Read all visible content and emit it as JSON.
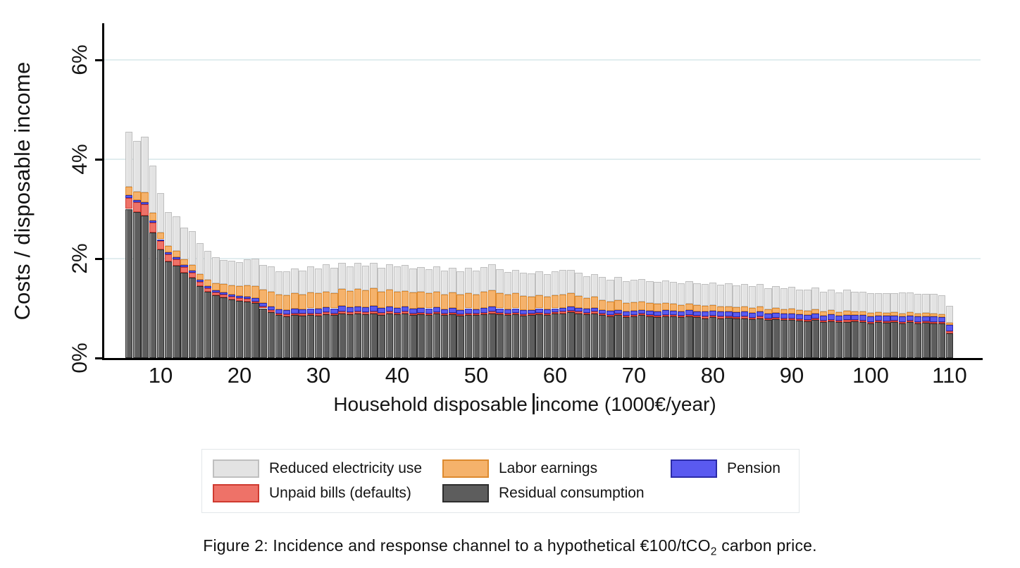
{
  "figure": {
    "y_axis_title": "Costs / disposable income",
    "x_axis_title_before_cursor": "Household disposable",
    "x_axis_title_after_cursor": "income (1000€/year)",
    "caption": {
      "prefix": "Figure 2: Incidence and response channel to a hypothetical €100/tCO",
      "subscript": "2",
      "suffix": " carbon price."
    }
  },
  "legend": {
    "items": [
      {
        "label": "Reduced electricity use",
        "series": "electricity"
      },
      {
        "label": "Labor earnings",
        "series": "labor"
      },
      {
        "label": "Pension",
        "series": "pension"
      },
      {
        "label": "Unpaid bills (defaults)",
        "series": "unpaid"
      },
      {
        "label": "Residual consumption",
        "series": "residual"
      }
    ]
  },
  "chart_data": {
    "type": "bar",
    "stacked": true,
    "title": "",
    "xlabel": "Household disposable income (1000€/year)",
    "ylabel": "Costs / disposable income",
    "y_unit": "% of disposable income",
    "xlim": [
      4.5,
      113.5
    ],
    "ylim": [
      0,
      6.73
    ],
    "grid": "horizontal",
    "grid_color": "#e1edef",
    "axis_color": "#000000",
    "xticks": [
      10,
      20,
      30,
      40,
      50,
      60,
      70,
      80,
      90,
      100,
      110
    ],
    "yticks": [
      {
        "value": 0,
        "label": "0%"
      },
      {
        "value": 2,
        "label": "2%"
      },
      {
        "value": 4,
        "label": "4%"
      },
      {
        "value": 6,
        "label": "6%"
      }
    ],
    "x": [
      6,
      7,
      8,
      9,
      10,
      11,
      12,
      13,
      14,
      15,
      16,
      17,
      18,
      19,
      20,
      21,
      22,
      23,
      24,
      25,
      26,
      27,
      28,
      29,
      30,
      31,
      32,
      33,
      34,
      35,
      36,
      37,
      38,
      39,
      40,
      41,
      42,
      43,
      44,
      45,
      46,
      47,
      48,
      49,
      50,
      51,
      52,
      53,
      54,
      55,
      56,
      57,
      58,
      59,
      60,
      61,
      62,
      63,
      64,
      65,
      66,
      67,
      68,
      69,
      70,
      71,
      72,
      73,
      74,
      75,
      76,
      77,
      78,
      79,
      80,
      81,
      82,
      83,
      84,
      85,
      86,
      87,
      88,
      89,
      90,
      91,
      92,
      93,
      94,
      95,
      96,
      97,
      98,
      99,
      100,
      101,
      102,
      103,
      104,
      105,
      106,
      107,
      108,
      109,
      110
    ],
    "stack_order_bottom_to_top": [
      "residual",
      "unpaid",
      "pension",
      "labor",
      "electricity"
    ],
    "series": [
      {
        "key": "residual",
        "name": "Residual consumption",
        "fill": "#5d5d5d",
        "border": "#2d2d2d",
        "values": [
          3.0,
          2.93,
          2.87,
          2.52,
          2.18,
          1.95,
          1.86,
          1.72,
          1.62,
          1.45,
          1.33,
          1.26,
          1.22,
          1.18,
          1.15,
          1.14,
          1.1,
          1.0,
          0.92,
          0.86,
          0.84,
          0.86,
          0.85,
          0.86,
          0.85,
          0.88,
          0.86,
          0.9,
          0.88,
          0.89,
          0.88,
          0.9,
          0.87,
          0.89,
          0.88,
          0.9,
          0.86,
          0.88,
          0.87,
          0.89,
          0.86,
          0.88,
          0.85,
          0.87,
          0.86,
          0.88,
          0.9,
          0.88,
          0.86,
          0.88,
          0.85,
          0.86,
          0.88,
          0.87,
          0.89,
          0.9,
          0.92,
          0.9,
          0.88,
          0.9,
          0.86,
          0.84,
          0.86,
          0.82,
          0.84,
          0.86,
          0.84,
          0.82,
          0.84,
          0.83,
          0.82,
          0.84,
          0.82,
          0.8,
          0.82,
          0.8,
          0.81,
          0.79,
          0.8,
          0.78,
          0.8,
          0.76,
          0.78,
          0.76,
          0.77,
          0.75,
          0.74,
          0.76,
          0.72,
          0.74,
          0.72,
          0.73,
          0.74,
          0.72,
          0.7,
          0.72,
          0.71,
          0.72,
          0.7,
          0.72,
          0.7,
          0.71,
          0.7,
          0.69,
          0.5
        ]
      },
      {
        "key": "unpaid",
        "name": "Unpaid bills (defaults)",
        "fill": "#ee7268",
        "border": "#cf3a30",
        "values": [
          0.22,
          0.2,
          0.22,
          0.2,
          0.17,
          0.14,
          0.13,
          0.11,
          0.1,
          0.08,
          0.07,
          0.06,
          0.06,
          0.05,
          0.05,
          0.05,
          0.04,
          0.04,
          0.04,
          0.04,
          0.04,
          0.04,
          0.04,
          0.04,
          0.04,
          0.04,
          0.04,
          0.04,
          0.04,
          0.04,
          0.04,
          0.04,
          0.04,
          0.04,
          0.03,
          0.03,
          0.03,
          0.03,
          0.03,
          0.03,
          0.03,
          0.03,
          0.03,
          0.03,
          0.03,
          0.03,
          0.03,
          0.03,
          0.03,
          0.03,
          0.03,
          0.03,
          0.03,
          0.03,
          0.03,
          0.03,
          0.03,
          0.03,
          0.03,
          0.03,
          0.03,
          0.03,
          0.03,
          0.03,
          0.03,
          0.03,
          0.03,
          0.03,
          0.03,
          0.03,
          0.03,
          0.03,
          0.03,
          0.03,
          0.03,
          0.03,
          0.03,
          0.03,
          0.03,
          0.03,
          0.03,
          0.03,
          0.03,
          0.03,
          0.03,
          0.03,
          0.03,
          0.03,
          0.03,
          0.03,
          0.03,
          0.03,
          0.03,
          0.03,
          0.03,
          0.03,
          0.03,
          0.03,
          0.03,
          0.03,
          0.03,
          0.03,
          0.03,
          0.03,
          0.04
        ]
      },
      {
        "key": "pension",
        "name": "Pension",
        "fill": "#5a5af0",
        "border": "#2b2ba8",
        "values": [
          0.05,
          0.05,
          0.05,
          0.05,
          0.04,
          0.04,
          0.04,
          0.04,
          0.04,
          0.04,
          0.04,
          0.04,
          0.04,
          0.05,
          0.05,
          0.05,
          0.06,
          0.06,
          0.07,
          0.08,
          0.08,
          0.09,
          0.09,
          0.1,
          0.1,
          0.1,
          0.1,
          0.11,
          0.1,
          0.11,
          0.1,
          0.11,
          0.1,
          0.1,
          0.1,
          0.1,
          0.1,
          0.1,
          0.1,
          0.1,
          0.09,
          0.1,
          0.09,
          0.1,
          0.09,
          0.1,
          0.1,
          0.09,
          0.09,
          0.09,
          0.09,
          0.08,
          0.09,
          0.08,
          0.08,
          0.08,
          0.09,
          0.08,
          0.08,
          0.08,
          0.08,
          0.08,
          0.08,
          0.08,
          0.08,
          0.08,
          0.08,
          0.09,
          0.09,
          0.09,
          0.09,
          0.09,
          0.09,
          0.1,
          0.1,
          0.1,
          0.1,
          0.1,
          0.1,
          0.1,
          0.1,
          0.1,
          0.1,
          0.1,
          0.1,
          0.1,
          0.1,
          0.11,
          0.1,
          0.11,
          0.1,
          0.11,
          0.1,
          0.11,
          0.11,
          0.1,
          0.11,
          0.1,
          0.11,
          0.1,
          0.1,
          0.1,
          0.1,
          0.1,
          0.12
        ]
      },
      {
        "key": "labor",
        "name": "Labor earnings",
        "fill": "#f5b26b",
        "border": "#dd8a2f",
        "values": [
          0.18,
          0.17,
          0.19,
          0.15,
          0.13,
          0.12,
          0.12,
          0.11,
          0.11,
          0.12,
          0.13,
          0.15,
          0.17,
          0.18,
          0.2,
          0.22,
          0.24,
          0.27,
          0.3,
          0.29,
          0.3,
          0.31,
          0.3,
          0.32,
          0.31,
          0.32,
          0.31,
          0.34,
          0.33,
          0.35,
          0.34,
          0.35,
          0.33,
          0.34,
          0.33,
          0.32,
          0.33,
          0.32,
          0.31,
          0.32,
          0.3,
          0.31,
          0.3,
          0.31,
          0.3,
          0.32,
          0.33,
          0.31,
          0.29,
          0.3,
          0.28,
          0.27,
          0.26,
          0.25,
          0.26,
          0.27,
          0.26,
          0.24,
          0.22,
          0.22,
          0.2,
          0.19,
          0.2,
          0.18,
          0.17,
          0.16,
          0.15,
          0.15,
          0.14,
          0.14,
          0.13,
          0.13,
          0.12,
          0.12,
          0.11,
          0.11,
          0.1,
          0.1,
          0.1,
          0.1,
          0.1,
          0.09,
          0.1,
          0.09,
          0.09,
          0.08,
          0.08,
          0.08,
          0.08,
          0.08,
          0.07,
          0.08,
          0.07,
          0.07,
          0.07,
          0.07,
          0.06,
          0.07,
          0.06,
          0.07,
          0.06,
          0.07,
          0.06,
          0.06,
          0.05
        ]
      },
      {
        "key": "electricity",
        "name": "Reduced electricity use",
        "fill": "#e3e3e3",
        "border": "#bfbfbf",
        "values": [
          1.1,
          1.02,
          1.12,
          0.95,
          0.8,
          0.68,
          0.7,
          0.64,
          0.68,
          0.62,
          0.58,
          0.52,
          0.48,
          0.5,
          0.48,
          0.52,
          0.56,
          0.5,
          0.52,
          0.48,
          0.48,
          0.5,
          0.48,
          0.52,
          0.5,
          0.54,
          0.5,
          0.52,
          0.5,
          0.52,
          0.5,
          0.52,
          0.48,
          0.52,
          0.5,
          0.52,
          0.48,
          0.5,
          0.48,
          0.5,
          0.48,
          0.5,
          0.48,
          0.5,
          0.48,
          0.5,
          0.52,
          0.48,
          0.46,
          0.48,
          0.46,
          0.46,
          0.48,
          0.46,
          0.48,
          0.5,
          0.48,
          0.46,
          0.44,
          0.46,
          0.46,
          0.44,
          0.46,
          0.44,
          0.46,
          0.46,
          0.44,
          0.44,
          0.46,
          0.44,
          0.44,
          0.46,
          0.44,
          0.44,
          0.46,
          0.44,
          0.46,
          0.44,
          0.46,
          0.44,
          0.46,
          0.42,
          0.44,
          0.42,
          0.44,
          0.42,
          0.42,
          0.44,
          0.4,
          0.42,
          0.4,
          0.42,
          0.4,
          0.4,
          0.4,
          0.38,
          0.4,
          0.38,
          0.42,
          0.4,
          0.4,
          0.38,
          0.4,
          0.38,
          0.34
        ]
      }
    ]
  }
}
